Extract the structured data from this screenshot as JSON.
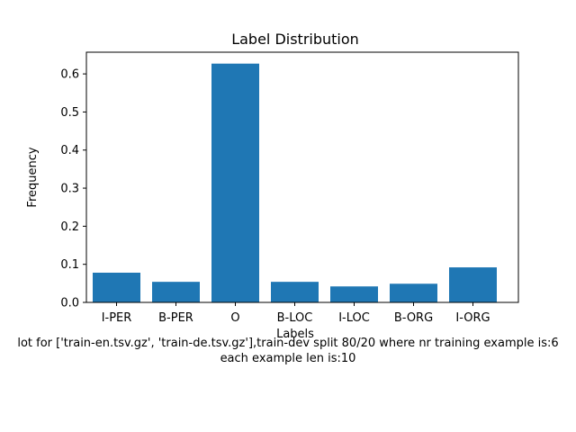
{
  "chart_data": {
    "type": "bar",
    "title": "Label Distribution",
    "xlabel": "Labels",
    "ylabel": "Frequency",
    "categories": [
      "I-PER",
      "B-PER",
      "O",
      "B-LOC",
      "I-LOC",
      "B-ORG",
      "I-ORG"
    ],
    "values": [
      0.078,
      0.054,
      0.627,
      0.054,
      0.042,
      0.049,
      0.092
    ],
    "ylim": [
      0,
      0.657
    ],
    "yticks": [
      0.0,
      0.1,
      0.2,
      0.3,
      0.4,
      0.5,
      0.6
    ],
    "ytick_labels": [
      "0.0",
      "0.1",
      "0.2",
      "0.3",
      "0.4",
      "0.5",
      "0.6"
    ],
    "grid": false,
    "bar_color": "#1f77b4"
  },
  "caption": {
    "line1": "lot for ['train-en.tsv.gz', 'train-de.tsv.gz'],train-dev split 80/20 where nr training example is:6",
    "line2": "each example len is:10"
  }
}
